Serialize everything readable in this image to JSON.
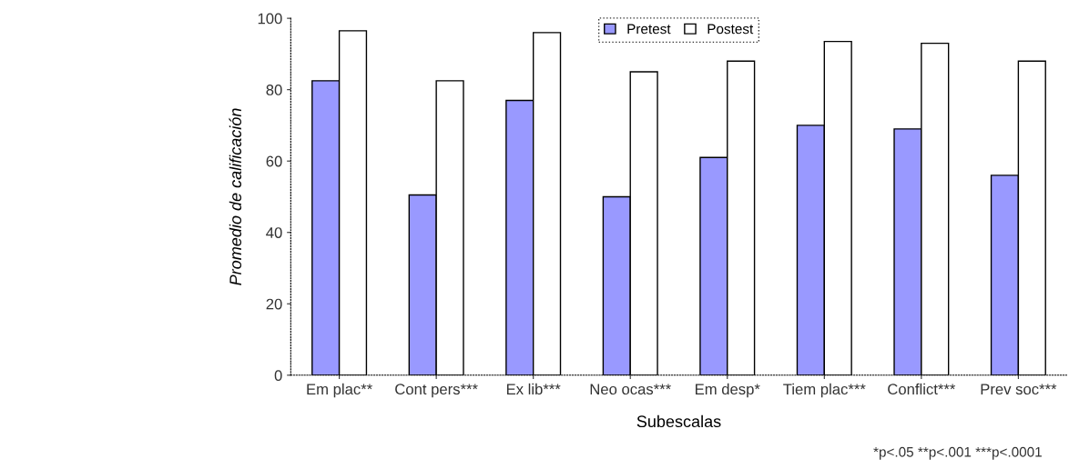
{
  "chart_data": {
    "type": "bar",
    "xlabel": "Subescalas",
    "ylabel": "Promedio de calificación",
    "categories": [
      "Em plac**",
      "Cont pers***",
      "Ex lib***",
      "Neo ocas***",
      "Em desp*",
      "Tiem plac***",
      "Conflict***",
      "Prev soc***"
    ],
    "series": [
      {
        "name": "Pretest",
        "color": "#9999ff",
        "values": [
          82.5,
          50.5,
          77,
          50,
          61,
          70,
          69,
          56
        ]
      },
      {
        "name": "Postest",
        "color": "#ffffff",
        "values": [
          96.5,
          82.5,
          96,
          85,
          88,
          93.5,
          93,
          88
        ]
      }
    ],
    "ylim": [
      0,
      100
    ],
    "yticks": [
      0,
      20,
      40,
      60,
      80,
      100
    ],
    "grid": false,
    "legend": "top",
    "annotations": [
      "*p<.05 **p<.001 ***p<.0001"
    ]
  }
}
